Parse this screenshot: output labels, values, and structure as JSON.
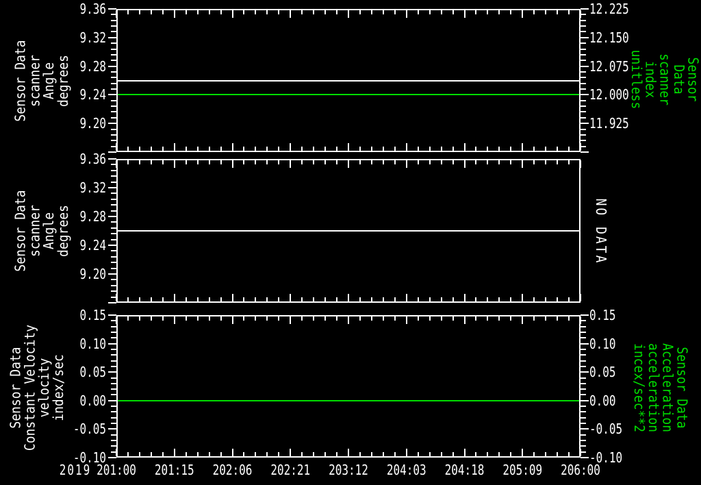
{
  "window": {
    "background": "#000000",
    "foreground": "#ffffff",
    "accent_green": "#00dd00"
  },
  "x_axis": {
    "year_label": "2019",
    "tick_labels": [
      "201:00",
      "201:15",
      "202:06",
      "202:21",
      "203:12",
      "204:03",
      "204:18",
      "205:09",
      "206:00"
    ],
    "minor_subdivisions_per_interval": 5
  },
  "panels": [
    {
      "left_label": "Sensor Data\nscanner\nAngle\ndegrees",
      "right_label": "Sensor Data\nscanner\nindex\nunitless",
      "left_tick_labels": [
        "9.36",
        "9.32",
        "9.28",
        "9.24",
        "9.20"
      ],
      "right_tick_labels": [
        "12.225",
        "12.150",
        "12.075",
        "12.000",
        "11.925"
      ],
      "has_right_ticks": true,
      "ymin": 9.16,
      "ymax": 9.36,
      "lines": [
        {
          "value": 9.26,
          "color": "#ffffff"
        },
        {
          "value": 9.24,
          "color": "#00dd00"
        }
      ]
    },
    {
      "left_label": "Sensor Data\nscanner\nAngle\ndegrees",
      "no_data_label": "NO DATA",
      "left_tick_labels": [
        "9.36",
        "9.32",
        "9.28",
        "9.24",
        "9.20"
      ],
      "right_tick_labels": [],
      "has_right_ticks": false,
      "ymin": 9.16,
      "ymax": 9.36,
      "lines": [
        {
          "value": 9.26,
          "color": "#ffffff"
        }
      ]
    },
    {
      "left_label": "Sensor Data\nConstant Velocity\nvelocity\nindex/sec",
      "right_label": "Sensor Data\nAcceleration\nacceleration\nincex/sec**2",
      "left_tick_labels": [
        "0.15",
        "0.10",
        "0.05",
        "0.00",
        "-0.05",
        "-0.10"
      ],
      "right_tick_labels": [
        "0.15",
        "0.10",
        "0.05",
        "0.00",
        "-0.05",
        "-0.10"
      ],
      "has_right_ticks": true,
      "ymin": -0.1,
      "ymax": 0.15,
      "lines": [
        {
          "value": 0.0,
          "color": "#00dd00"
        }
      ]
    }
  ],
  "chart_data": [
    {
      "type": "line",
      "panel": "top",
      "x": {
        "start": "2019 201:00",
        "end": "2019 206:00",
        "ticks": [
          "201:00",
          "201:15",
          "202:06",
          "202:21",
          "203:12",
          "204:03",
          "204:18",
          "205:09",
          "206:00"
        ]
      },
      "left_axis": {
        "label": "Sensor Data scanner Angle degrees",
        "ylim": [
          9.16,
          9.36
        ],
        "ticks": [
          9.36,
          9.32,
          9.28,
          9.24,
          9.2
        ]
      },
      "right_axis": {
        "label": "Sensor Data scanner index unitless",
        "ylim": [
          11.85,
          12.225
        ],
        "ticks": [
          12.225,
          12.15,
          12.075,
          12.0,
          11.925
        ]
      },
      "grid": false,
      "series": [
        {
          "name": "scanner Angle",
          "axis": "left",
          "color": "#ffffff",
          "shape": "constant",
          "value": 9.26
        },
        {
          "name": "scanner index",
          "axis": "right",
          "color": "#00dd00",
          "shape": "constant",
          "value": 12.0
        }
      ]
    },
    {
      "type": "line",
      "panel": "middle",
      "x": {
        "start": "2019 201:00",
        "end": "2019 206:00",
        "ticks": [
          "201:00",
          "201:15",
          "202:06",
          "202:21",
          "203:12",
          "204:03",
          "204:18",
          "205:09",
          "206:00"
        ]
      },
      "left_axis": {
        "label": "Sensor Data scanner Angle degrees",
        "ylim": [
          9.16,
          9.36
        ],
        "ticks": [
          9.36,
          9.32,
          9.28,
          9.24,
          9.2
        ]
      },
      "right_axis": {
        "label": "NO DATA",
        "ylim": null,
        "ticks": []
      },
      "grid": false,
      "series": [
        {
          "name": "scanner Angle",
          "axis": "left",
          "color": "#ffffff",
          "shape": "constant",
          "value": 9.26
        }
      ]
    },
    {
      "type": "line",
      "panel": "bottom",
      "x": {
        "start": "2019 201:00",
        "end": "2019 206:00",
        "ticks": [
          "201:00",
          "201:15",
          "202:06",
          "202:21",
          "203:12",
          "204:03",
          "204:18",
          "205:09",
          "206:00"
        ]
      },
      "left_axis": {
        "label": "Sensor Data Constant Velocity velocity index/sec",
        "ylim": [
          -0.1,
          0.15
        ],
        "ticks": [
          0.15,
          0.1,
          0.05,
          0.0,
          -0.05,
          -0.1
        ]
      },
      "right_axis": {
        "label": "Sensor Data Acceleration acceleration incex/sec**2",
        "ylim": [
          -0.1,
          0.15
        ],
        "ticks": [
          0.15,
          0.1,
          0.05,
          0.0,
          -0.05,
          -0.1
        ]
      },
      "grid": false,
      "series": [
        {
          "name": "acceleration",
          "axis": "right",
          "color": "#00dd00",
          "shape": "constant",
          "value": 0.0
        }
      ]
    }
  ]
}
